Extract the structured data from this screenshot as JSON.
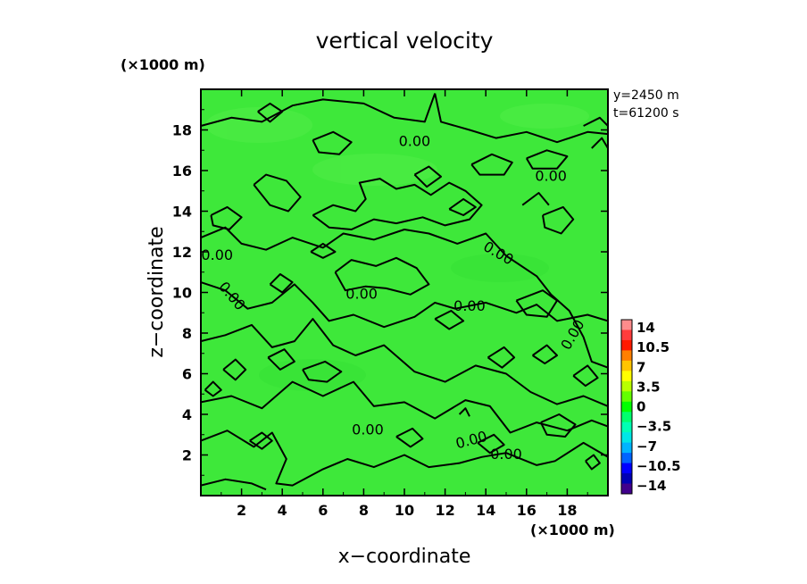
{
  "chart_data": {
    "type": "heatmap",
    "title": "vertical velocity",
    "xlabel": "x−coordinate",
    "ylabel": "z−coordinate",
    "x_unit": "(×1000 m)",
    "y_unit": "(×1000 m)",
    "xlim": [
      0,
      20
    ],
    "ylim": [
      0,
      20
    ],
    "x_ticks": [
      2,
      4,
      6,
      8,
      10,
      12,
      14,
      16,
      18
    ],
    "y_ticks": [
      2,
      4,
      6,
      8,
      10,
      12,
      14,
      16,
      18
    ],
    "x_tick_labels": [
      "2",
      "4",
      "6",
      "8",
      "10",
      "12",
      "14",
      "16",
      "18"
    ],
    "y_tick_labels": [
      "2",
      "4",
      "6",
      "8",
      "10",
      "12",
      "14",
      "16",
      "18"
    ],
    "info": [
      "y=2450 m",
      "t=61200 s"
    ],
    "field_value": 0.0,
    "contour_level_label": "0.00",
    "contour_labels": [
      {
        "text": "0.00",
        "x": 10.5,
        "z": 17.4,
        "angle": 0
      },
      {
        "text": "0.00",
        "x": 17.2,
        "z": 15.7,
        "angle": 0
      },
      {
        "text": "0.00",
        "x": 0.8,
        "z": 11.8,
        "angle": 0
      },
      {
        "text": "0.00",
        "x": 14.6,
        "z": 11.9,
        "angle": 30
      },
      {
        "text": "0.00",
        "x": 1.5,
        "z": 9.8,
        "angle": 50
      },
      {
        "text": "0.00",
        "x": 7.9,
        "z": 9.9,
        "angle": 0
      },
      {
        "text": "0.00",
        "x": 13.2,
        "z": 9.3,
        "angle": 0
      },
      {
        "text": "0.00",
        "x": 18.3,
        "z": 7.9,
        "angle": -60
      },
      {
        "text": "0.00",
        "x": 8.2,
        "z": 3.2,
        "angle": 0
      },
      {
        "text": "0.00",
        "x": 13.3,
        "z": 2.7,
        "angle": -15
      },
      {
        "text": "0.00",
        "x": 15.0,
        "z": 2.0,
        "angle": 0
      }
    ],
    "contours": [
      [
        [
          0,
          18.2
        ],
        [
          1.5,
          18.6
        ],
        [
          3,
          18.4
        ],
        [
          4.5,
          19.2
        ],
        [
          6,
          19.5
        ],
        [
          8,
          19.3
        ],
        [
          9.5,
          18.6
        ],
        [
          11,
          18.4
        ],
        [
          11.5,
          19.8
        ]
      ],
      [
        [
          11.5,
          19.8
        ],
        [
          11.8,
          18.4
        ],
        [
          13.2,
          18.0
        ],
        [
          14.5,
          17.6
        ],
        [
          16,
          17.9
        ],
        [
          17.5,
          17.4
        ],
        [
          19,
          17.9
        ],
        [
          20,
          17.8
        ]
      ],
      [
        [
          0,
          12.7
        ],
        [
          1.2,
          13.2
        ],
        [
          2,
          12.4
        ],
        [
          3.2,
          12.1
        ],
        [
          4.5,
          12.7
        ],
        [
          6,
          12.2
        ],
        [
          7,
          12.9
        ],
        [
          8.5,
          12.6
        ],
        [
          10,
          13.1
        ],
        [
          11.2,
          12.9
        ],
        [
          12.6,
          12.4
        ],
        [
          14,
          12.9
        ],
        [
          15,
          11.8
        ],
        [
          16.5,
          10.8
        ],
        [
          17.2,
          9.9
        ],
        [
          18.1,
          9.1
        ],
        [
          18.8,
          7.8
        ],
        [
          19.2,
          6.6
        ],
        [
          20,
          6.3
        ]
      ],
      [
        [
          0,
          10.5
        ],
        [
          1.2,
          10.1
        ],
        [
          2.3,
          9.2
        ],
        [
          3.5,
          9.5
        ],
        [
          4.6,
          10.4
        ],
        [
          5.5,
          9.5
        ],
        [
          6.3,
          8.6
        ],
        [
          7.5,
          8.9
        ],
        [
          9,
          8.3
        ],
        [
          10.5,
          8.8
        ],
        [
          11.5,
          9.5
        ],
        [
          12.5,
          9.2
        ],
        [
          14,
          9.5
        ],
        [
          15.5,
          9.0
        ],
        [
          16.5,
          9.4
        ],
        [
          17.5,
          8.6
        ],
        [
          19,
          8.9
        ],
        [
          20,
          8.6
        ]
      ],
      [
        [
          0,
          7.6
        ],
        [
          1.2,
          7.9
        ],
        [
          2.5,
          8.4
        ],
        [
          3.5,
          7.3
        ],
        [
          4.6,
          7.6
        ],
        [
          5.5,
          8.7
        ],
        [
          6.5,
          7.4
        ],
        [
          7.6,
          6.9
        ],
        [
          9,
          7.4
        ],
        [
          10.5,
          6.1
        ],
        [
          12,
          5.6
        ],
        [
          13.5,
          6.4
        ],
        [
          15,
          6.0
        ],
        [
          16.2,
          5.1
        ],
        [
          17.5,
          4.5
        ],
        [
          18.8,
          4.9
        ],
        [
          20,
          4.4
        ]
      ],
      [
        [
          0,
          4.6
        ],
        [
          1.5,
          4.9
        ],
        [
          3,
          4.3
        ],
        [
          4.5,
          5.6
        ],
        [
          6,
          4.9
        ],
        [
          7.5,
          5.6
        ],
        [
          8.5,
          4.4
        ],
        [
          10,
          4.6
        ],
        [
          11.5,
          3.8
        ],
        [
          13,
          4.7
        ],
        [
          14.2,
          4.4
        ],
        [
          15.2,
          3.1
        ],
        [
          16.5,
          3.6
        ],
        [
          18,
          3.2
        ],
        [
          19.2,
          3.7
        ],
        [
          20,
          3.4
        ]
      ],
      [
        [
          0,
          2.7
        ],
        [
          1.3,
          3.2
        ],
        [
          2.6,
          2.4
        ],
        [
          3.5,
          3.1
        ],
        [
          4.2,
          1.8
        ],
        [
          3.7,
          0.6
        ],
        [
          4.5,
          0.5
        ],
        [
          6,
          1.3
        ],
        [
          7.2,
          1.8
        ],
        [
          8.5,
          1.4
        ],
        [
          10,
          2.0
        ],
        [
          11.2,
          1.4
        ],
        [
          12.7,
          1.6
        ],
        [
          13.8,
          1.9
        ],
        [
          15,
          2.1
        ],
        [
          16.5,
          1.5
        ],
        [
          17.4,
          1.7
        ],
        [
          18.8,
          2.6
        ],
        [
          20,
          1.9
        ]
      ],
      [
        [
          0,
          0.5
        ],
        [
          1.2,
          0.8
        ],
        [
          2.5,
          0.6
        ],
        [
          3.2,
          0.3
        ]
      ],
      [
        [
          5.5,
          13.8
        ],
        [
          6.5,
          14.3
        ],
        [
          7.6,
          14.0
        ],
        [
          8.1,
          14.6
        ],
        [
          7.8,
          15.4
        ],
        [
          8.8,
          15.6
        ],
        [
          9.6,
          15.1
        ],
        [
          10.5,
          15.3
        ],
        [
          11.3,
          14.8
        ],
        [
          12.2,
          15.4
        ],
        [
          13.0,
          15.0
        ],
        [
          13.8,
          14.3
        ],
        [
          13.2,
          13.6
        ],
        [
          12.0,
          13.3
        ],
        [
          10.9,
          13.7
        ],
        [
          9.6,
          13.4
        ],
        [
          8.5,
          13.6
        ],
        [
          7.4,
          13.1
        ],
        [
          6.3,
          13.2
        ],
        [
          5.5,
          13.8
        ]
      ],
      [
        [
          2.6,
          15.3
        ],
        [
          3.2,
          15.8
        ],
        [
          4.2,
          15.5
        ],
        [
          4.9,
          14.7
        ],
        [
          4.3,
          14.0
        ],
        [
          3.4,
          14.3
        ],
        [
          2.6,
          15.3
        ]
      ],
      [
        [
          0.5,
          13.8
        ],
        [
          1.3,
          14.2
        ],
        [
          2.0,
          13.7
        ],
        [
          1.4,
          13.1
        ],
        [
          0.6,
          13.3
        ],
        [
          0.5,
          13.8
        ]
      ],
      [
        [
          5.5,
          17.5
        ],
        [
          6.5,
          17.9
        ],
        [
          7.4,
          17.4
        ],
        [
          6.8,
          16.8
        ],
        [
          5.8,
          16.9
        ],
        [
          5.5,
          17.5
        ]
      ],
      [
        [
          10.5,
          15.8
        ],
        [
          11.2,
          16.2
        ],
        [
          11.8,
          15.7
        ],
        [
          11.1,
          15.2
        ],
        [
          10.5,
          15.8
        ]
      ],
      [
        [
          16.0,
          16.6
        ],
        [
          17.0,
          17.0
        ],
        [
          18.0,
          16.7
        ],
        [
          17.5,
          16.1
        ],
        [
          16.3,
          16.1
        ],
        [
          16.0,
          16.6
        ]
      ],
      [
        [
          16.8,
          13.8
        ],
        [
          17.8,
          14.2
        ],
        [
          18.3,
          13.6
        ],
        [
          17.7,
          12.9
        ],
        [
          16.9,
          13.2
        ],
        [
          16.8,
          13.8
        ]
      ],
      [
        [
          19.2,
          17.1
        ],
        [
          19.7,
          17.6
        ],
        [
          20,
          17.1
        ]
      ],
      [
        [
          15.8,
          14.3
        ],
        [
          16.6,
          14.9
        ],
        [
          17.1,
          14.3
        ]
      ],
      [
        [
          13.3,
          16.3
        ],
        [
          14.3,
          16.8
        ],
        [
          15.3,
          16.4
        ],
        [
          14.9,
          15.8
        ],
        [
          13.7,
          15.8
        ],
        [
          13.3,
          16.3
        ]
      ],
      [
        [
          12.2,
          14.1
        ],
        [
          12.9,
          14.6
        ],
        [
          13.5,
          14.2
        ],
        [
          12.9,
          13.8
        ],
        [
          12.2,
          14.1
        ]
      ],
      [
        [
          6.6,
          11.0
        ],
        [
          7.4,
          11.6
        ],
        [
          8.6,
          11.3
        ],
        [
          9.6,
          11.7
        ],
        [
          10.6,
          11.2
        ],
        [
          11.2,
          10.4
        ],
        [
          10.3,
          9.9
        ],
        [
          9.1,
          10.2
        ],
        [
          8.1,
          10.3
        ],
        [
          7.1,
          10.1
        ],
        [
          6.6,
          11.0
        ]
      ],
      [
        [
          5.4,
          12.0
        ],
        [
          6.0,
          12.4
        ],
        [
          6.6,
          12.0
        ],
        [
          6.0,
          11.7
        ],
        [
          5.4,
          12.0
        ]
      ],
      [
        [
          3.4,
          10.4
        ],
        [
          3.9,
          10.9
        ],
        [
          4.5,
          10.5
        ],
        [
          4.0,
          10.0
        ],
        [
          3.4,
          10.4
        ]
      ],
      [
        [
          15.5,
          9.6
        ],
        [
          16.8,
          10.1
        ],
        [
          17.5,
          9.6
        ],
        [
          17.0,
          8.8
        ],
        [
          16.0,
          8.9
        ],
        [
          15.5,
          9.6
        ]
      ],
      [
        [
          11.5,
          8.7
        ],
        [
          12.3,
          9.1
        ],
        [
          12.9,
          8.6
        ],
        [
          12.2,
          8.2
        ],
        [
          11.5,
          8.7
        ]
      ],
      [
        [
          3.3,
          6.8
        ],
        [
          4.1,
          7.2
        ],
        [
          4.6,
          6.6
        ],
        [
          3.9,
          6.2
        ],
        [
          3.3,
          6.8
        ]
      ],
      [
        [
          5.0,
          6.2
        ],
        [
          6.1,
          6.6
        ],
        [
          6.9,
          6.1
        ],
        [
          6.2,
          5.6
        ],
        [
          5.3,
          5.7
        ],
        [
          5.0,
          6.2
        ]
      ],
      [
        [
          1.1,
          6.2
        ],
        [
          1.7,
          6.7
        ],
        [
          2.2,
          6.2
        ],
        [
          1.7,
          5.7
        ],
        [
          1.1,
          6.2
        ]
      ],
      [
        [
          14.1,
          6.8
        ],
        [
          14.9,
          7.3
        ],
        [
          15.4,
          6.8
        ],
        [
          14.8,
          6.3
        ],
        [
          14.1,
          6.8
        ]
      ],
      [
        [
          16.3,
          6.9
        ],
        [
          17.0,
          7.4
        ],
        [
          17.5,
          6.9
        ],
        [
          16.9,
          6.5
        ],
        [
          16.3,
          6.9
        ]
      ],
      [
        [
          18.3,
          5.9
        ],
        [
          19.0,
          6.4
        ],
        [
          19.5,
          5.8
        ],
        [
          18.9,
          5.4
        ],
        [
          18.3,
          5.9
        ]
      ],
      [
        [
          9.6,
          2.9
        ],
        [
          10.4,
          3.3
        ],
        [
          10.9,
          2.8
        ],
        [
          10.3,
          2.4
        ],
        [
          9.6,
          2.9
        ]
      ],
      [
        [
          16.7,
          3.6
        ],
        [
          17.6,
          4.0
        ],
        [
          18.4,
          3.5
        ],
        [
          17.9,
          2.9
        ],
        [
          17.0,
          3.0
        ],
        [
          16.7,
          3.6
        ]
      ],
      [
        [
          2.4,
          2.7
        ],
        [
          3.0,
          3.1
        ],
        [
          3.5,
          2.7
        ],
        [
          3.0,
          2.3
        ],
        [
          2.4,
          2.7
        ]
      ],
      [
        [
          13.6,
          2.6
        ],
        [
          14.4,
          3.0
        ],
        [
          14.9,
          2.5
        ],
        [
          14.2,
          2.1
        ],
        [
          13.6,
          2.6
        ]
      ],
      [
        [
          18.9,
          1.7
        ],
        [
          19.3,
          2.0
        ],
        [
          19.6,
          1.6
        ],
        [
          19.2,
          1.3
        ],
        [
          18.9,
          1.7
        ]
      ],
      [
        [
          0.2,
          5.2
        ],
        [
          0.6,
          5.6
        ],
        [
          1.0,
          5.2
        ],
        [
          0.6,
          4.9
        ],
        [
          0.2,
          5.2
        ]
      ],
      [
        [
          12.7,
          4.0
        ],
        [
          13.0,
          4.3
        ],
        [
          13.2,
          3.9
        ]
      ],
      [
        [
          2.8,
          18.9
        ],
        [
          3.4,
          19.3
        ],
        [
          4.0,
          18.9
        ],
        [
          3.4,
          18.4
        ],
        [
          2.8,
          18.9
        ]
      ],
      [
        [
          18.8,
          18.2
        ],
        [
          19.6,
          18.6
        ],
        [
          20,
          18.2
        ]
      ]
    ],
    "colorbar": {
      "labels": [
        "14",
        "10.5",
        "7",
        "3.5",
        "0",
        "−3.5",
        "−7",
        "−10.5",
        "−14"
      ],
      "colors": [
        "#ff8c8c",
        "#ff3c3c",
        "#ff1a00",
        "#ff7f00",
        "#ffc400",
        "#ffff00",
        "#b8ff00",
        "#63ff00",
        "#00ff00",
        "#00ff6e",
        "#00ffb4",
        "#00e6e6",
        "#00b4ff",
        "#0064ff",
        "#0000ff",
        "#0000b4",
        "#40008c"
      ]
    },
    "colors": {
      "field": "#3ee83a",
      "contour": "#000000",
      "frame": "#000000"
    }
  }
}
